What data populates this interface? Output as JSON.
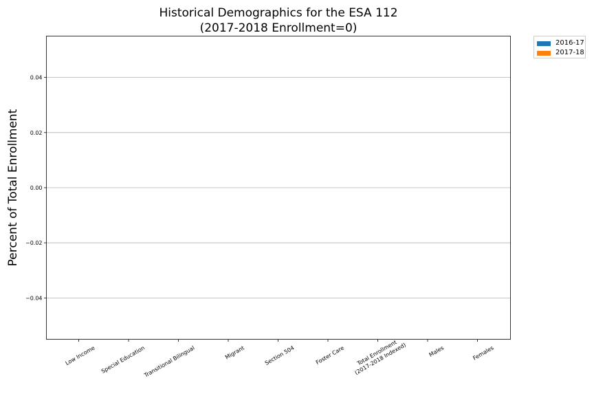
{
  "chart_data": {
    "type": "bar",
    "title": "Historical Demographics for the ESA 112",
    "subtitle": "(2017-2018 Enrollment=0)",
    "xlabel": "",
    "ylabel": "Percent of Total Enrollment",
    "categories": [
      "Low Income",
      "Special Education",
      "Transitional Bilingual",
      "Migrant",
      "Section 504",
      "Foster Care",
      "Total Enrollment\n(2017-2018 Indexed)",
      "Males",
      "Females"
    ],
    "series": [
      {
        "name": "2016-17",
        "color": "#1f77b4",
        "values": [
          0,
          0,
          0,
          0,
          0,
          0,
          0,
          0,
          0
        ]
      },
      {
        "name": "2017-18",
        "color": "#ff7f0e",
        "values": [
          0,
          0,
          0,
          0,
          0,
          0,
          0,
          0,
          0
        ]
      }
    ],
    "ylim": [
      -0.055,
      0.055
    ],
    "yticks": [
      -0.04,
      -0.02,
      0.0,
      0.02,
      0.04
    ],
    "ytick_labels": [
      "−0.04",
      "−0.02",
      "0.00",
      "0.02",
      "0.04"
    ],
    "grid": "y",
    "legend_position": "outside-top-right"
  }
}
